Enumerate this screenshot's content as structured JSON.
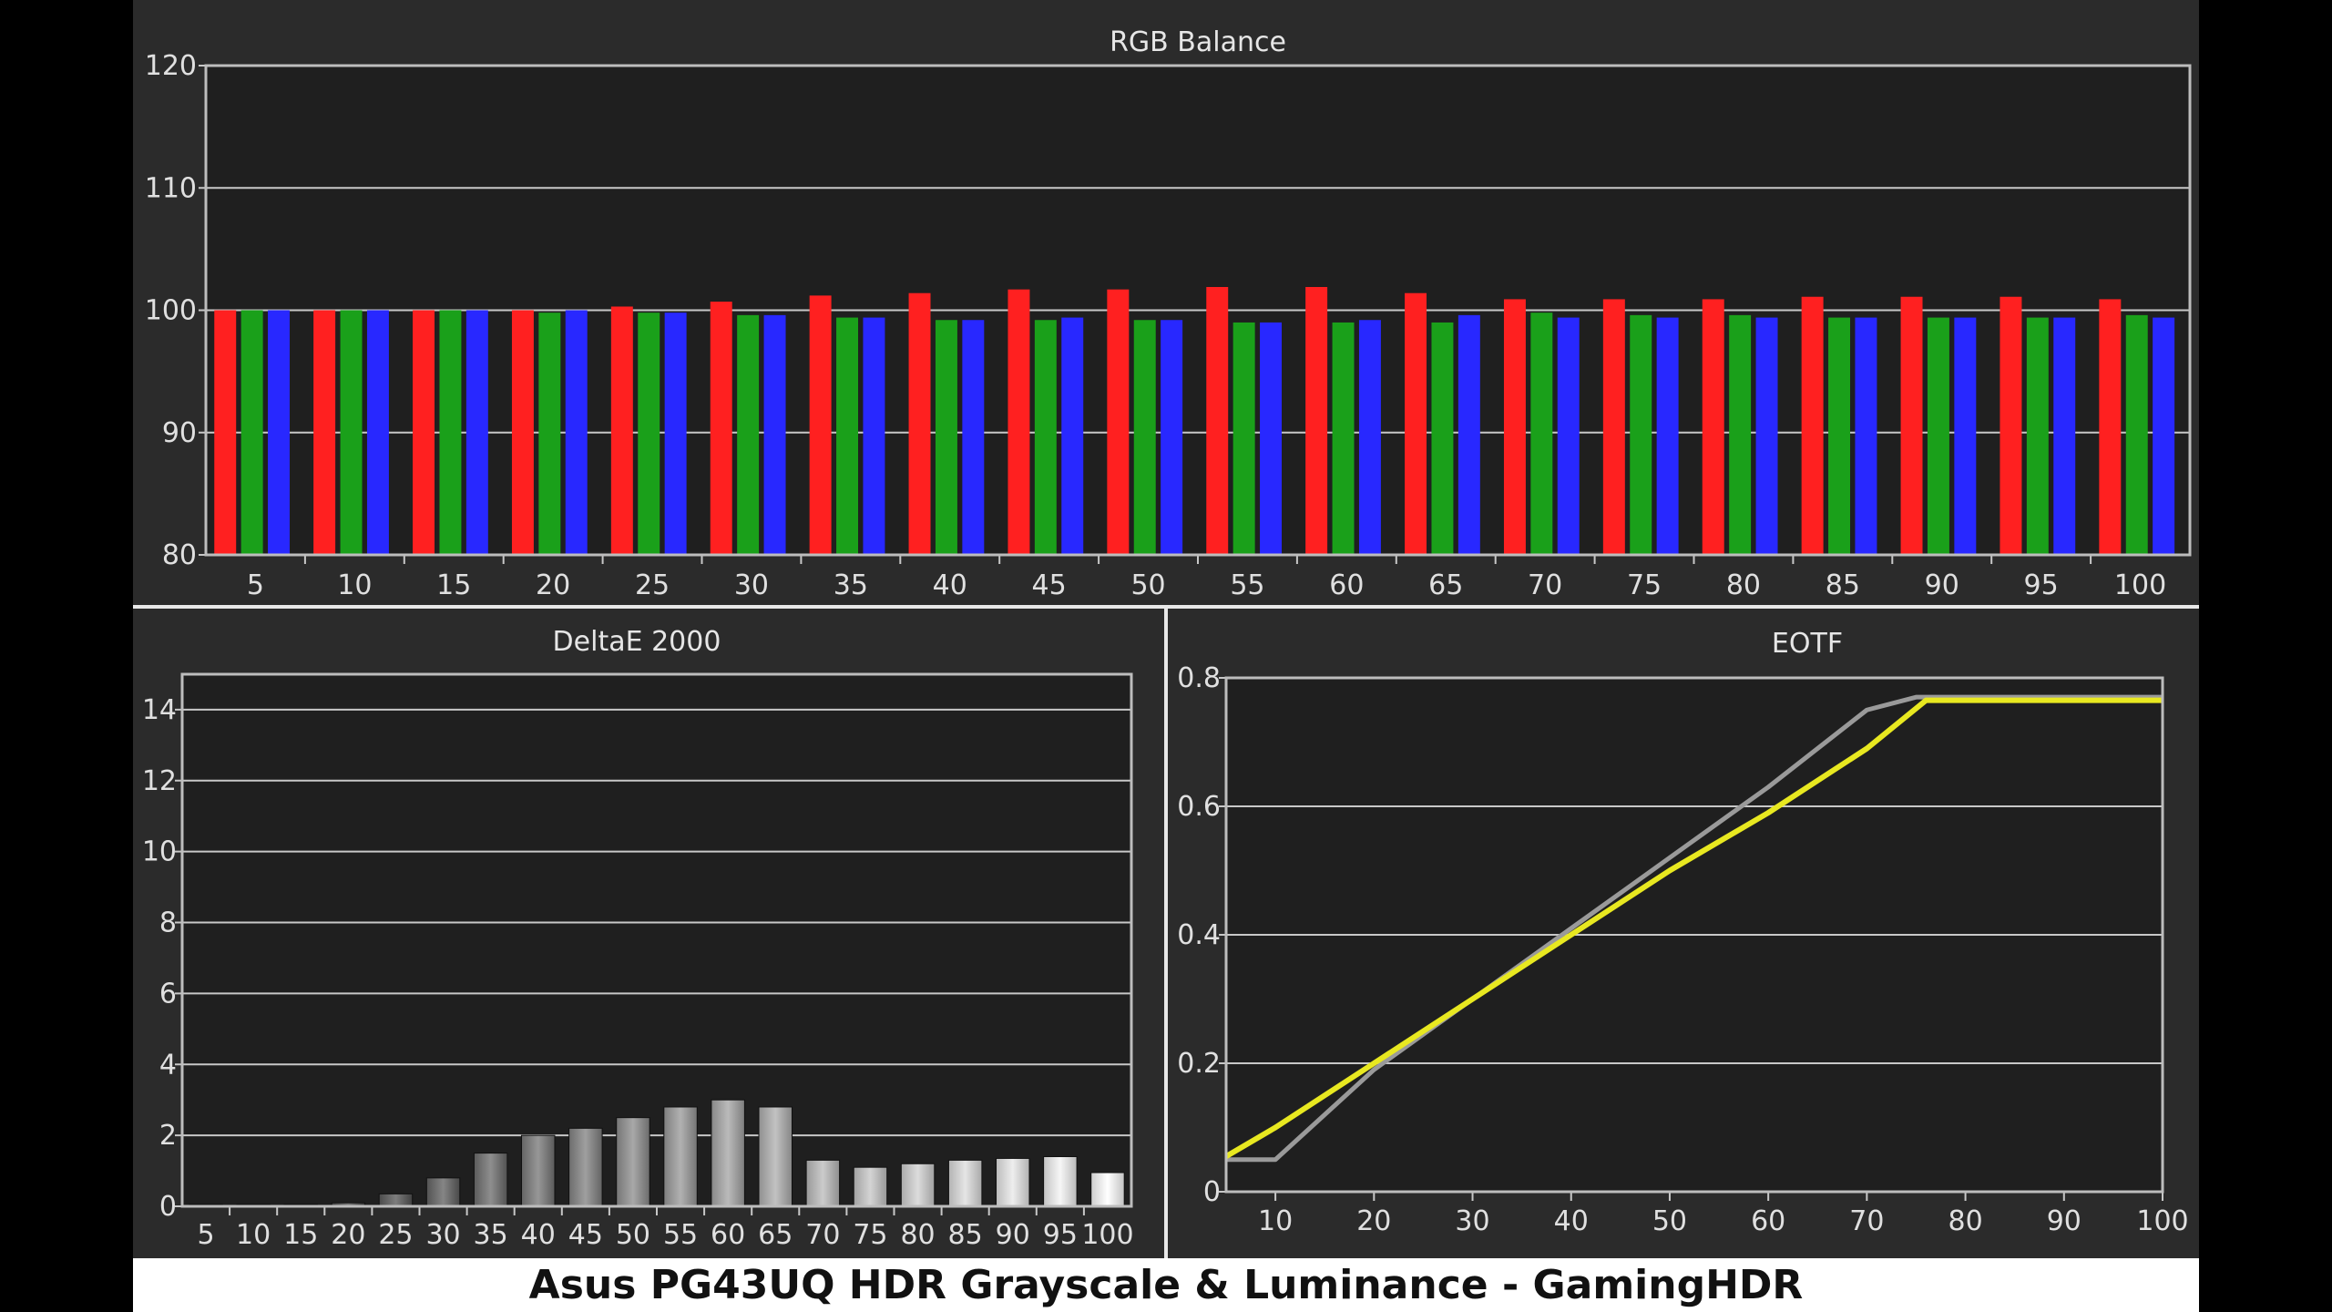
{
  "caption": "Asus PG43UQ HDR Grayscale & Luminance - GamingHDR",
  "colors": {
    "red": "#ff2020",
    "green": "#1aa01a",
    "blue": "#2828ff",
    "eotf_target": "#9a9a9a",
    "eotf_measured": "#e8e820"
  },
  "chart_data": [
    {
      "type": "bar",
      "title": "RGB Balance",
      "categories": [
        "5",
        "10",
        "15",
        "20",
        "25",
        "30",
        "35",
        "40",
        "45",
        "50",
        "55",
        "60",
        "65",
        "70",
        "75",
        "80",
        "85",
        "90",
        "95",
        "100"
      ],
      "ylim": [
        80,
        120
      ],
      "yticks": [
        "80",
        "90",
        "100",
        "110",
        "120"
      ],
      "series": [
        {
          "color_key": "red",
          "values": [
            100,
            100,
            100,
            100,
            100.3,
            100.7,
            101.2,
            101.4,
            101.7,
            101.7,
            101.9,
            101.9,
            101.4,
            100.9,
            100.9,
            100.9,
            101.1,
            101.1,
            101.1,
            100.9
          ]
        },
        {
          "color_key": "green",
          "values": [
            100,
            100,
            100,
            99.8,
            99.8,
            99.6,
            99.4,
            99.2,
            99.2,
            99.2,
            99.0,
            99.0,
            99.0,
            99.8,
            99.6,
            99.6,
            99.4,
            99.4,
            99.4,
            99.6
          ]
        },
        {
          "color_key": "blue",
          "values": [
            100,
            100,
            100,
            100,
            99.8,
            99.6,
            99.4,
            99.2,
            99.4,
            99.2,
            99.0,
            99.2,
            99.6,
            99.4,
            99.4,
            99.4,
            99.4,
            99.4,
            99.4,
            99.4
          ]
        }
      ]
    },
    {
      "type": "bar",
      "title": "DeltaE 2000",
      "categories": [
        "5",
        "10",
        "15",
        "20",
        "25",
        "30",
        "35",
        "40",
        "45",
        "50",
        "55",
        "60",
        "65",
        "70",
        "75",
        "80",
        "85",
        "90",
        "95",
        "100"
      ],
      "ylim": [
        0,
        15
      ],
      "yticks": [
        "0",
        "2",
        "4",
        "6",
        "8",
        "10",
        "12",
        "14"
      ],
      "values": [
        0.05,
        0.05,
        0.05,
        0.1,
        0.35,
        0.8,
        1.5,
        2.0,
        2.2,
        2.5,
        2.8,
        3.0,
        2.8,
        1.3,
        1.1,
        1.2,
        1.3,
        1.35,
        1.4,
        0.95
      ]
    },
    {
      "type": "line",
      "title": "EOTF",
      "xlim": [
        5,
        100
      ],
      "ylim": [
        0,
        0.8
      ],
      "xticks": [
        "10",
        "20",
        "30",
        "40",
        "50",
        "60",
        "70",
        "80",
        "90",
        "100"
      ],
      "yticks": [
        "0",
        "0.2",
        "0.4",
        "0.6",
        "0.8"
      ],
      "series": [
        {
          "color_key": "eotf_target",
          "x": [
            5,
            10,
            20,
            30,
            40,
            50,
            60,
            70,
            75,
            100
          ],
          "y": [
            0.05,
            0.05,
            0.19,
            0.3,
            0.41,
            0.52,
            0.63,
            0.75,
            0.77,
            0.77
          ]
        },
        {
          "color_key": "eotf_measured",
          "x": [
            5,
            10,
            20,
            30,
            40,
            50,
            60,
            70,
            76,
            100
          ],
          "y": [
            0.055,
            0.1,
            0.2,
            0.3,
            0.4,
            0.5,
            0.59,
            0.69,
            0.765,
            0.765
          ]
        }
      ]
    }
  ]
}
